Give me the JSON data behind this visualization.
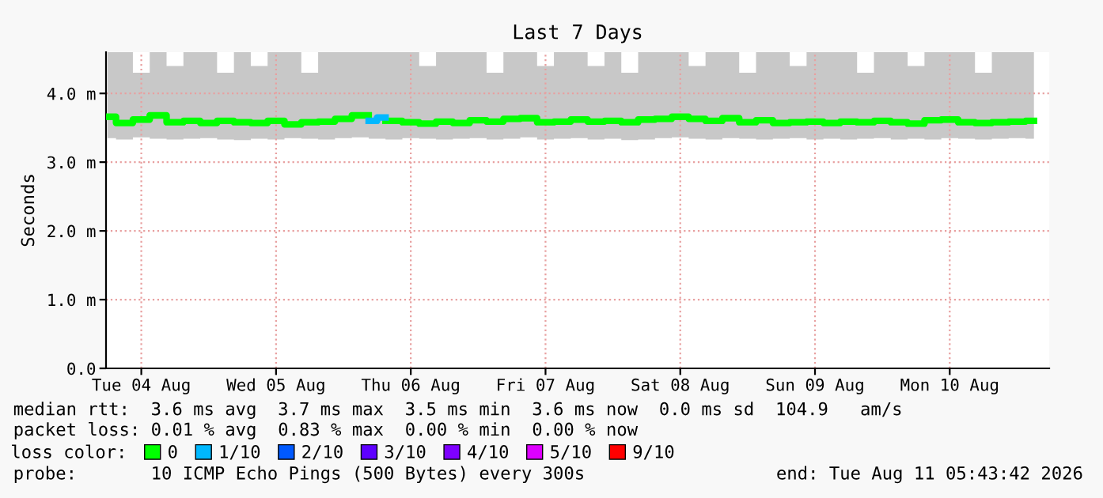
{
  "chart_data": {
    "type": "step",
    "title": "Last 7 Days",
    "ylabel": "Seconds",
    "x": [
      "2026-08-04T06:00",
      "2026-08-04T09:00",
      "2026-08-04T12:00",
      "2026-08-04T15:00",
      "2026-08-04T18:00",
      "2026-08-04T21:00",
      "2026-08-05T00:00",
      "2026-08-05T03:00",
      "2026-08-05T06:00",
      "2026-08-05T09:00",
      "2026-08-05T12:00",
      "2026-08-05T15:00",
      "2026-08-05T18:00",
      "2026-08-05T21:00",
      "2026-08-06T00:00",
      "2026-08-06T03:00",
      "2026-08-06T06:00",
      "2026-08-06T09:00",
      "2026-08-06T12:00",
      "2026-08-06T15:00",
      "2026-08-06T18:00",
      "2026-08-06T21:00",
      "2026-08-07T00:00",
      "2026-08-07T03:00",
      "2026-08-07T06:00",
      "2026-08-07T09:00",
      "2026-08-07T12:00",
      "2026-08-07T15:00",
      "2026-08-07T18:00",
      "2026-08-07T21:00",
      "2026-08-08T00:00",
      "2026-08-08T03:00",
      "2026-08-08T06:00",
      "2026-08-08T09:00",
      "2026-08-08T12:00",
      "2026-08-08T15:00",
      "2026-08-08T18:00",
      "2026-08-08T21:00",
      "2026-08-09T00:00",
      "2026-08-09T03:00",
      "2026-08-09T06:00",
      "2026-08-09T09:00",
      "2026-08-09T12:00",
      "2026-08-09T15:00",
      "2026-08-09T18:00",
      "2026-08-09T21:00",
      "2026-08-10T00:00",
      "2026-08-10T03:00",
      "2026-08-10T06:00",
      "2026-08-10T09:00",
      "2026-08-10T12:00",
      "2026-08-10T15:00",
      "2026-08-10T18:00",
      "2026-08-10T21:00",
      "2026-08-11T00:00",
      "2026-08-11T03:00"
    ],
    "series": [
      {
        "name": "0",
        "color": "#00ff00",
        "values": [
          3.66,
          3.57,
          3.62,
          3.68,
          3.58,
          3.6,
          3.57,
          3.6,
          3.58,
          3.57,
          3.6,
          3.55,
          3.58,
          3.59,
          3.63,
          3.68,
          null,
          3.6,
          3.58,
          3.56,
          3.59,
          3.57,
          3.61,
          3.59,
          3.63,
          3.64,
          3.58,
          3.59,
          3.62,
          3.59,
          3.6,
          3.58,
          3.62,
          3.63,
          3.66,
          3.63,
          3.6,
          3.64,
          3.58,
          3.61,
          3.57,
          3.58,
          3.59,
          3.57,
          3.59,
          3.58,
          3.6,
          3.58,
          3.56,
          3.61,
          3.62,
          3.58,
          3.57,
          3.58,
          3.59,
          3.6
        ],
        "lower": [
          3.35,
          3.33,
          3.36,
          3.34,
          3.33,
          3.34,
          3.35,
          3.33,
          3.32,
          3.34,
          3.33,
          3.35,
          3.34,
          3.33,
          3.35,
          3.36,
          3.34,
          3.33,
          3.35,
          3.34,
          3.33,
          3.34,
          3.35,
          3.33,
          3.34,
          3.36,
          3.33,
          3.34,
          3.35,
          3.33,
          3.34,
          3.32,
          3.33,
          3.35,
          3.36,
          3.34,
          3.33,
          3.35,
          3.34,
          3.33,
          3.34,
          3.35,
          3.33,
          3.34,
          3.33,
          3.34,
          3.35,
          3.33,
          3.34,
          3.33,
          3.35,
          3.34,
          3.33,
          3.34,
          3.35,
          3.34
        ],
        "upper": [
          4.6,
          4.6,
          4.3,
          4.6,
          4.4,
          4.6,
          4.6,
          4.3,
          4.6,
          4.4,
          4.6,
          4.6,
          4.3,
          4.6,
          4.6,
          4.6,
          4.6,
          4.6,
          4.6,
          4.4,
          4.6,
          4.6,
          4.6,
          4.3,
          4.6,
          4.6,
          4.4,
          4.6,
          4.6,
          4.4,
          4.6,
          4.3,
          4.6,
          4.6,
          4.6,
          4.4,
          4.6,
          4.6,
          4.3,
          4.6,
          4.6,
          4.4,
          4.6,
          4.6,
          4.6,
          4.3,
          4.6,
          4.6,
          4.4,
          4.6,
          4.6,
          4.6,
          4.3,
          4.6,
          4.6,
          4.6
        ]
      },
      {
        "name": "1/10",
        "color": "#00b8ff",
        "x": [
          "2026-08-06T04:30",
          "2026-08-06T07:30"
        ],
        "values": [
          3.6,
          3.65
        ]
      },
      {
        "name": "2/10",
        "color": "#0059ff",
        "values": [
          null,
          null,
          null,
          null,
          null,
          null,
          null,
          null,
          null,
          null,
          null,
          null,
          null,
          null,
          null,
          null,
          null,
          null,
          null,
          null,
          null,
          null,
          null,
          null,
          null,
          null,
          null,
          null,
          null,
          null,
          null,
          null,
          null,
          null,
          null,
          null,
          null,
          null,
          null,
          null,
          null,
          null,
          null,
          null,
          null,
          null,
          null,
          null,
          null,
          null,
          null,
          null,
          null,
          null,
          null,
          null
        ]
      },
      {
        "name": "3/10",
        "color": "#5e00ff",
        "values": [
          null,
          null,
          null,
          null,
          null,
          null,
          null,
          null,
          null,
          null,
          null,
          null,
          null,
          null,
          null,
          null,
          null,
          null,
          null,
          null,
          null,
          null,
          null,
          null,
          null,
          null,
          null,
          null,
          null,
          null,
          null,
          null,
          null,
          null,
          null,
          null,
          null,
          null,
          null,
          null,
          null,
          null,
          null,
          null,
          null,
          null,
          null,
          null,
          null,
          null,
          null,
          null,
          null,
          null,
          null,
          null
        ]
      },
      {
        "name": "4/10",
        "color": "#7e00ff",
        "values": [
          null,
          null,
          null,
          null,
          null,
          null,
          null,
          null,
          null,
          null,
          null,
          null,
          null,
          null,
          null,
          null,
          null,
          null,
          null,
          null,
          null,
          null,
          null,
          null,
          null,
          null,
          null,
          null,
          null,
          null,
          null,
          null,
          null,
          null,
          null,
          null,
          null,
          null,
          null,
          null,
          null,
          null,
          null,
          null,
          null,
          null,
          null,
          null,
          null,
          null,
          null,
          null,
          null,
          null,
          null,
          null
        ]
      },
      {
        "name": "5/10",
        "color": "#dd00ff",
        "values": [
          null,
          null,
          null,
          null,
          null,
          null,
          null,
          null,
          null,
          null,
          null,
          null,
          null,
          null,
          null,
          null,
          null,
          null,
          null,
          null,
          null,
          null,
          null,
          null,
          null,
          null,
          null,
          null,
          null,
          null,
          null,
          null,
          null,
          null,
          null,
          null,
          null,
          null,
          null,
          null,
          null,
          null,
          null,
          null,
          null,
          null,
          null,
          null,
          null,
          null,
          null,
          null,
          null,
          null,
          null,
          null
        ]
      },
      {
        "name": "9/10",
        "color": "#ff0000",
        "values": [
          null,
          null,
          null,
          null,
          null,
          null,
          null,
          null,
          null,
          null,
          null,
          null,
          null,
          null,
          null,
          null,
          null,
          null,
          null,
          null,
          null,
          null,
          null,
          null,
          null,
          null,
          null,
          null,
          null,
          null,
          null,
          null,
          null,
          null,
          null,
          null,
          null,
          null,
          null,
          null,
          null,
          null,
          null,
          null,
          null,
          null,
          null,
          null,
          null,
          null,
          null,
          null,
          null,
          null,
          null,
          null
        ]
      }
    ],
    "legend_title": "loss color:",
    "legend": "bottom",
    "xlim": [
      "2026-08-04T05:43",
      "2026-08-11T05:43"
    ],
    "xticks": [
      {
        "value": "2026-08-04T12:00",
        "label": "Tue 04 Aug"
      },
      {
        "value": "2026-08-05T12:00",
        "label": "Wed 05 Aug"
      },
      {
        "value": "2026-08-06T12:00",
        "label": "Thu 06 Aug"
      },
      {
        "value": "2026-08-07T12:00",
        "label": "Fri 07 Aug"
      },
      {
        "value": "2026-08-08T12:00",
        "label": "Sat 08 Aug"
      },
      {
        "value": "2026-08-09T12:00",
        "label": "Sun 09 Aug"
      },
      {
        "value": "2026-08-10T12:00",
        "label": "Mon 10 Aug"
      }
    ],
    "ylim": [
      0,
      4.6
    ],
    "yticks": [
      {
        "value": 0,
        "label": "0.0"
      },
      {
        "value": 1,
        "label": "1.0 m"
      },
      {
        "value": 2,
        "label": "2.0 m"
      },
      {
        "value": 3,
        "label": "3.0 m"
      },
      {
        "value": 4,
        "label": "4.0 m"
      }
    ],
    "grid": true,
    "marker": "none",
    "line_style": "solid",
    "annotations": [
      "median rtt:  3.6 ms avg  3.7 ms max  3.5 ms min  3.6 ms now  0.0 ms sd  104.9   am/s",
      "packet loss: 0.01 % avg  0.83 % max  0.00 % min  0.00 % now",
      "probe:       10 ICMP Echo Pings (500 Bytes) every 300s",
      "end: Tue Aug 11 05:43:42 2026"
    ]
  }
}
